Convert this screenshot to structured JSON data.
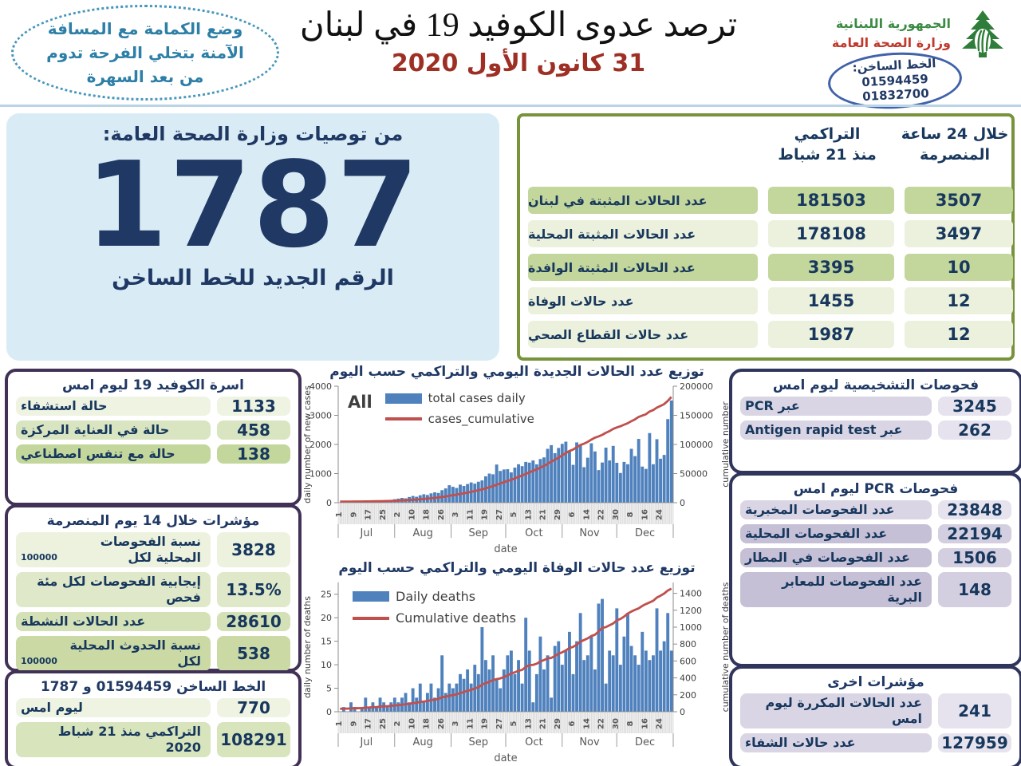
{
  "header": {
    "badge_line1": "وضع الكمامة مع المسافة",
    "badge_line2": "الآمنة بتخلي الفرحة تدوم",
    "badge_line3": "من بعد السهرة",
    "title": "ترصد عدوى الكوفيد 19 في لبنان",
    "date": "31 كانون الأول 2020",
    "ministry_line1": "الجمهورية اللبنانية",
    "ministry_line2": "وزارة الصحة العامة",
    "hotline_label": "الخط الساخن:",
    "hotline_number1": "01594459",
    "hotline_number2": "01832700"
  },
  "big_panel": {
    "title": "من توصيات وزارة الصحة العامة:",
    "number": "1787",
    "subtitle": "الرقم الجديد للخط الساخن"
  },
  "stats_table": {
    "header_cumulative_l1": "التراكمي",
    "header_cumulative_l2": "منذ 21 شباط",
    "header_24h_l1": "خلال 24 ساعة",
    "header_24h_l2": "المنصرمة",
    "rows": [
      {
        "label": "عدد الحالات المثبتة في لبنان",
        "cumulative": "181503",
        "last24": "3507"
      },
      {
        "label": "عدد الحالات المثبتة المحلية",
        "cumulative": "178108",
        "last24": "3497"
      },
      {
        "label": "عدد الحالات المثبتة الوافدة",
        "cumulative": "3395",
        "last24": "10"
      },
      {
        "label": "عدد حالات الوفاة",
        "cumulative": "1455",
        "last24": "12"
      },
      {
        "label": "عدد حالات القطاع الصحي",
        "cumulative": "1987",
        "last24": "12"
      }
    ]
  },
  "beds_panel": {
    "title": "اسرة الكوفيد 19 ليوم امس",
    "rows": [
      {
        "value": "1133",
        "label": "حالة استشفاء",
        "label_num": ""
      },
      {
        "value": "458",
        "label": "حالة في العناية المركزة",
        "label_num": ""
      },
      {
        "value": "138",
        "label": "حالة مع تنفس اصطناعي",
        "label_num": ""
      }
    ]
  },
  "indicators14_panel": {
    "title": "مؤشرات خلال 14 يوم المنصرمة",
    "rows": [
      {
        "value": "3828",
        "label": "نسبة الفحوصات  المحلية لكل",
        "label_num": "100000"
      },
      {
        "value": "13.5%",
        "label": "إيجابية الفحوصات لكل مئة فحص",
        "label_num": ""
      },
      {
        "value": "28610",
        "label": "عدد الحالات النشطة",
        "label_num": ""
      },
      {
        "value": "538",
        "label": "نسبة الحدوث المحلية لكل",
        "label_num": "100000"
      }
    ]
  },
  "hotline_calls_panel": {
    "title": "الخط الساخن 01594459 و 1787",
    "rows": [
      {
        "value": "770",
        "label": "ليوم امس",
        "label_num": ""
      },
      {
        "value": "108291",
        "label": "التراكمي منذ 21 شباط 2020",
        "label_num": ""
      }
    ]
  },
  "diagnostics_panel": {
    "title": "فحوصات التشخيصية ليوم امس",
    "rows": [
      {
        "value": "3245",
        "label": "عبر PCR",
        "label_num": ""
      },
      {
        "value": "262",
        "label": "عبر Antigen rapid test",
        "label_num": ""
      }
    ]
  },
  "pcr_panel": {
    "title": "فحوصات  PCR ليوم امس",
    "rows": [
      {
        "value": "23848",
        "label": "عدد الفحوصات المخبرية",
        "label_num": ""
      },
      {
        "value": "22194",
        "label": "عدد الفحوصات المحلية",
        "label_num": ""
      },
      {
        "value": "1506",
        "label": "عدد الفحوصات في المطار",
        "label_num": ""
      },
      {
        "value": "148",
        "label": "عدد الفحوصات للمعابر البرية",
        "label_num": ""
      }
    ]
  },
  "other_panel": {
    "title": "مؤشرات اخرى",
    "rows": [
      {
        "value": "241",
        "label": "عدد الحالات المكررة  ليوم امس",
        "label_num": ""
      },
      {
        "value": "127959",
        "label": "عدد حالات الشفاء",
        "label_num": ""
      }
    ]
  },
  "colors": {
    "navy_text": "#17375d",
    "table_border_olive": "#77933c",
    "green_row_dark": "#c3d69b",
    "green_row_light": "#ebf1dd",
    "lavender_row": "#d9d5e4",
    "panel_border_purple": "#413156",
    "panel_border_navy": "#30355c",
    "bar_blue": "#4f81bd",
    "line_red": "#c0504d",
    "date_red": "#9e2f24",
    "light_blue_panel": "#d9ecf5"
  },
  "chart_data": [
    {
      "type": "bar-line",
      "title": "توزيع عدد الحالات الجديدة اليومي والتراكمي حسب اليوم",
      "series_label": "All",
      "legend_bar": "total cases daily",
      "legend_line": "cases_cumulative",
      "ylabel": "daily number of new cases",
      "y2label": "cumulative number",
      "xlabel": "date",
      "ylim": [
        0,
        4000
      ],
      "yticks": [
        0,
        1000,
        2000,
        3000,
        4000
      ],
      "y2lim": [
        0,
        200000
      ],
      "y2ticks": [
        0,
        50000,
        100000,
        150000,
        200000
      ],
      "cumulative_start": 1800,
      "cumulative_end": 181503,
      "bar_color": "#4f81bd",
      "line_color": "#c0504d",
      "days_total": 184,
      "sample_step_days": 2,
      "xtick_labels": [
        "1",
        "9",
        "17",
        "25",
        "2",
        "10",
        "18",
        "26",
        "3",
        "11",
        "19",
        "27",
        "5",
        "13",
        "21",
        "29",
        "6",
        "14",
        "22",
        "30",
        "8",
        "16",
        "24"
      ],
      "xtick_days": [
        0,
        8,
        16,
        24,
        32,
        40,
        48,
        56,
        64,
        72,
        80,
        88,
        96,
        104,
        112,
        120,
        128,
        136,
        144,
        152,
        160,
        168,
        176
      ],
      "months": [
        {
          "name": "Jul",
          "s": 0,
          "e": 31
        },
        {
          "name": "Aug",
          "s": 31,
          "e": 62
        },
        {
          "name": "Sep",
          "s": 62,
          "e": 92
        },
        {
          "name": "Oct",
          "s": 92,
          "e": 123
        },
        {
          "name": "Nov",
          "s": 123,
          "e": 153
        },
        {
          "name": "Dec",
          "s": 153,
          "e": 184
        }
      ],
      "values": [
        12,
        18,
        15,
        25,
        22,
        32,
        28,
        45,
        40,
        55,
        50,
        75,
        65,
        95,
        85,
        120,
        140,
        165,
        150,
        195,
        230,
        205,
        255,
        290,
        265,
        320,
        355,
        335,
        430,
        490,
        600,
        545,
        505,
        620,
        575,
        640,
        695,
        655,
        720,
        765,
        905,
        1000,
        975,
        1310,
        1090,
        1140,
        1150,
        1040,
        1205,
        1320,
        1255,
        1400,
        1375,
        1450,
        1315,
        1500,
        1555,
        1850,
        1975,
        1700,
        1880,
        2020,
        2095,
        1795,
        1300,
        2070,
        1975,
        1220,
        1545,
        2040,
        1760,
        1120,
        1380,
        1890,
        1450,
        1950,
        1370,
        1020,
        1400,
        1320,
        1850,
        1600,
        2190,
        1240,
        1160,
        2390,
        1320,
        2180,
        1510,
        1640,
        2870,
        3510
      ]
    },
    {
      "type": "bar-line",
      "title": "توزيع عدد حالات  الوفاة اليومي والتراكمي حسب اليوم",
      "series_label": "",
      "legend_bar": "Daily deaths",
      "legend_line": "Cumulative deaths",
      "ylabel": "daily number of deaths",
      "y2label": "cumulative number of deaths",
      "xlabel": "date",
      "ylim": [
        0,
        27.5
      ],
      "yticks": [
        0,
        5,
        10,
        15,
        20,
        25
      ],
      "y2lim": [
        0,
        1528
      ],
      "y2ticks": [
        0,
        200,
        400,
        600,
        800,
        1000,
        1200,
        1400
      ],
      "cumulative_start": 35,
      "cumulative_end": 1455,
      "bar_color": "#4f81bd",
      "line_color": "#c0504d",
      "days_total": 184,
      "sample_step_days": 2,
      "xtick_labels": [
        "1",
        "9",
        "17",
        "25",
        "2",
        "10",
        "18",
        "26",
        "3",
        "11",
        "19",
        "27",
        "5",
        "13",
        "21",
        "29",
        "6",
        "14",
        "22",
        "30",
        "8",
        "16",
        "24"
      ],
      "xtick_days": [
        0,
        8,
        16,
        24,
        32,
        40,
        48,
        56,
        64,
        72,
        80,
        88,
        96,
        104,
        112,
        120,
        128,
        136,
        144,
        152,
        160,
        168,
        176
      ],
      "months": [
        {
          "name": "Jul",
          "s": 0,
          "e": 31
        },
        {
          "name": "Aug",
          "s": 31,
          "e": 62
        },
        {
          "name": "Sep",
          "s": 62,
          "e": 92
        },
        {
          "name": "Oct",
          "s": 92,
          "e": 123
        },
        {
          "name": "Nov",
          "s": 123,
          "e": 153
        },
        {
          "name": "Dec",
          "s": 153,
          "e": 184
        }
      ],
      "values": [
        0,
        1,
        0,
        2,
        1,
        0,
        1,
        3,
        1,
        2,
        1,
        3,
        2,
        1,
        2,
        3,
        2,
        3,
        4,
        2,
        5,
        3,
        6,
        2,
        4,
        6,
        3,
        5,
        12,
        4,
        6,
        5,
        6,
        8,
        7,
        9,
        6,
        10,
        8,
        18,
        11,
        9,
        12,
        7,
        5,
        9,
        12,
        13,
        8,
        11,
        6,
        20,
        13,
        2,
        8,
        16,
        9,
        12,
        3,
        14,
        15,
        10,
        13,
        17,
        8,
        15,
        21,
        11,
        12,
        16,
        9,
        23,
        24,
        6,
        13,
        12,
        22,
        10,
        16,
        21,
        14,
        12,
        10,
        17,
        13,
        11,
        12,
        22,
        13,
        15,
        21,
        13
      ]
    }
  ]
}
